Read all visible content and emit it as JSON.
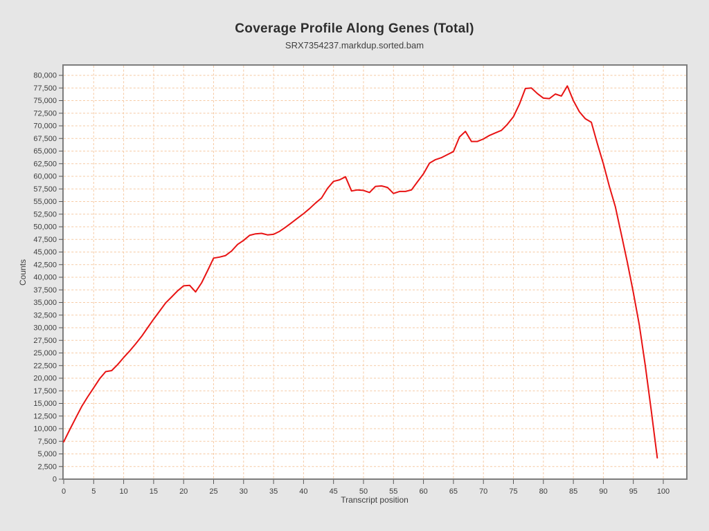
{
  "header": {
    "title": "Coverage Profile Along Genes (Total)",
    "subtitle": "SRX7354237.markdup.sorted.bam"
  },
  "colors": {
    "background": "#e6e6e6",
    "plot_background": "#ffffff",
    "plot_border": "#7d7d7d",
    "gridline": "#f6c9a2",
    "series_line": "#e81313",
    "tick_mark": "#555555",
    "text": "#3d3d3d"
  },
  "chart_data": {
    "type": "line",
    "title": "Coverage Profile Along Genes (Total)",
    "subtitle": "SRX7354237.markdup.sorted.bam",
    "xlabel": "Transcript position",
    "ylabel": "Counts",
    "xlim": [
      -2,
      104
    ],
    "ylim": [
      0,
      82000
    ],
    "grid": true,
    "grid_style": "dashed",
    "x_ticks": [
      0,
      5,
      10,
      15,
      20,
      25,
      30,
      35,
      40,
      45,
      50,
      55,
      60,
      65,
      70,
      75,
      80,
      85,
      90,
      95,
      100
    ],
    "x_tick_labels": [
      "0",
      "5",
      "10",
      "15",
      "20",
      "25",
      "30",
      "35",
      "40",
      "45",
      "50",
      "55",
      "60",
      "65",
      "70",
      "75",
      "80",
      "85",
      "90",
      "95",
      "100"
    ],
    "y_ticks": [
      0,
      2500,
      5000,
      7500,
      10000,
      12500,
      15000,
      17500,
      20000,
      22500,
      25000,
      27500,
      30000,
      32500,
      35000,
      37500,
      40000,
      42500,
      45000,
      47500,
      50000,
      52500,
      55000,
      57500,
      60000,
      62500,
      65000,
      67500,
      70000,
      72500,
      75000,
      77500,
      80000
    ],
    "y_tick_labels": [
      "0",
      "2,500",
      "5,000",
      "7,500",
      "10,000",
      "12,500",
      "15,000",
      "17,500",
      "20,000",
      "22,500",
      "25,000",
      "27,500",
      "30,000",
      "32,500",
      "35,000",
      "37,500",
      "40,000",
      "42,500",
      "45,000",
      "47,500",
      "50,000",
      "52,500",
      "55,000",
      "57,500",
      "60,000",
      "62,500",
      "65,000",
      "67,500",
      "70,000",
      "72,500",
      "75,000",
      "77,500",
      "80,000"
    ],
    "series": [
      {
        "name": "coverage",
        "color": "#e81313",
        "x_start": 0,
        "x_step": 1,
        "values": [
          7400,
          9800,
          12100,
          14400,
          16300,
          18100,
          19900,
          21300,
          21500,
          22700,
          24100,
          25400,
          26800,
          28300,
          30000,
          31700,
          33300,
          34900,
          36100,
          37300,
          38300,
          38400,
          37100,
          38900,
          41300,
          43800,
          44000,
          44300,
          45200,
          46500,
          47300,
          48300,
          48600,
          48700,
          48400,
          48500,
          49100,
          49900,
          50800,
          51700,
          52600,
          53600,
          54700,
          55700,
          57600,
          59000,
          59300,
          59900,
          57100,
          57300,
          57200,
          56800,
          58000,
          58100,
          57800,
          56600,
          57000,
          57000,
          57300,
          58900,
          60500,
          62600,
          63300,
          63700,
          64300,
          64900,
          67800,
          68900,
          66900,
          66900,
          67400,
          68100,
          68600,
          69100,
          70300,
          71800,
          74300,
          77400,
          77500,
          76400,
          75500,
          75400,
          76300,
          75900,
          77900,
          75000,
          72800,
          71400,
          70700,
          66500,
          62500,
          58000,
          54000,
          48500,
          43000,
          37000,
          30500,
          22500,
          13500,
          4200
        ]
      }
    ]
  }
}
